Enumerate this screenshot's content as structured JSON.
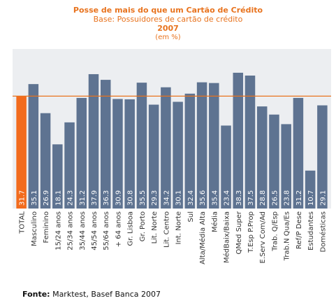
{
  "header": {
    "title": "Posse de mais do que um Cartão de Crédito",
    "subtitle": "Base: Possuidores de cartão de crédito",
    "year": "2007",
    "unit": "(em %)"
  },
  "source": {
    "label": "Fonte:",
    "text": "Marktest, Basef Banca 2007"
  },
  "colors": {
    "bar": "#5e7391",
    "highlight": "#f26b1d",
    "reference_line": "#e8731e",
    "plot_background": "#eceef1",
    "label_text": "#ffffff"
  },
  "chart_data": {
    "type": "bar",
    "title": "Posse de mais do que um Cartão de Crédito",
    "subtitle": "Base: Possuidores de cartão de crédito",
    "categories": [
      "TOTAL",
      "Masculino",
      "Feminino",
      "15/24 anos",
      "25/34 anos",
      "35/44 anos",
      "45/54 anos",
      "55/64 anos",
      "+ 64 anos",
      "Gr. Lisboa",
      "Gr. Porto",
      "Lit. Norte",
      "Lit. Centro",
      "Int. Norte",
      "Sul",
      "Alta/Média Alta",
      "Média",
      "MédBaix/Baixa",
      "QMed Super",
      "T.Esp P.Prop",
      "E.Serv Com/Ad",
      "Trab. Q/Esp",
      "Trab.N Qua/Es",
      "Ref/P Dese",
      "Estudantes",
      "Domésticas"
    ],
    "values": [
      31.7,
      35.1,
      26.9,
      18.1,
      24.3,
      31.2,
      37.9,
      36.3,
      30.9,
      30.8,
      35.5,
      29.3,
      34.2,
      30.1,
      32.4,
      35.6,
      35.4,
      23.4,
      38.3,
      37.5,
      28.8,
      26.5,
      23.8,
      31.2,
      10.7,
      29.1
    ],
    "value_labels": [
      "31.7",
      "35.1",
      "26.9",
      "18.1",
      "24.3",
      "31.2",
      "37.9",
      "36.3",
      "30.9",
      "30.8",
      "35.5",
      "29.3",
      "34.2",
      "30.1",
      "32.4",
      "35.6",
      "35.4",
      "23.4",
      "38.3",
      "37.5",
      "28.8",
      "26.5",
      "23.8",
      "31.2",
      "10.7",
      "29.1"
    ],
    "highlight_index": 0,
    "reference_value": 31.7,
    "ylim": [
      0,
      45
    ],
    "grid": false,
    "legend": "none"
  }
}
